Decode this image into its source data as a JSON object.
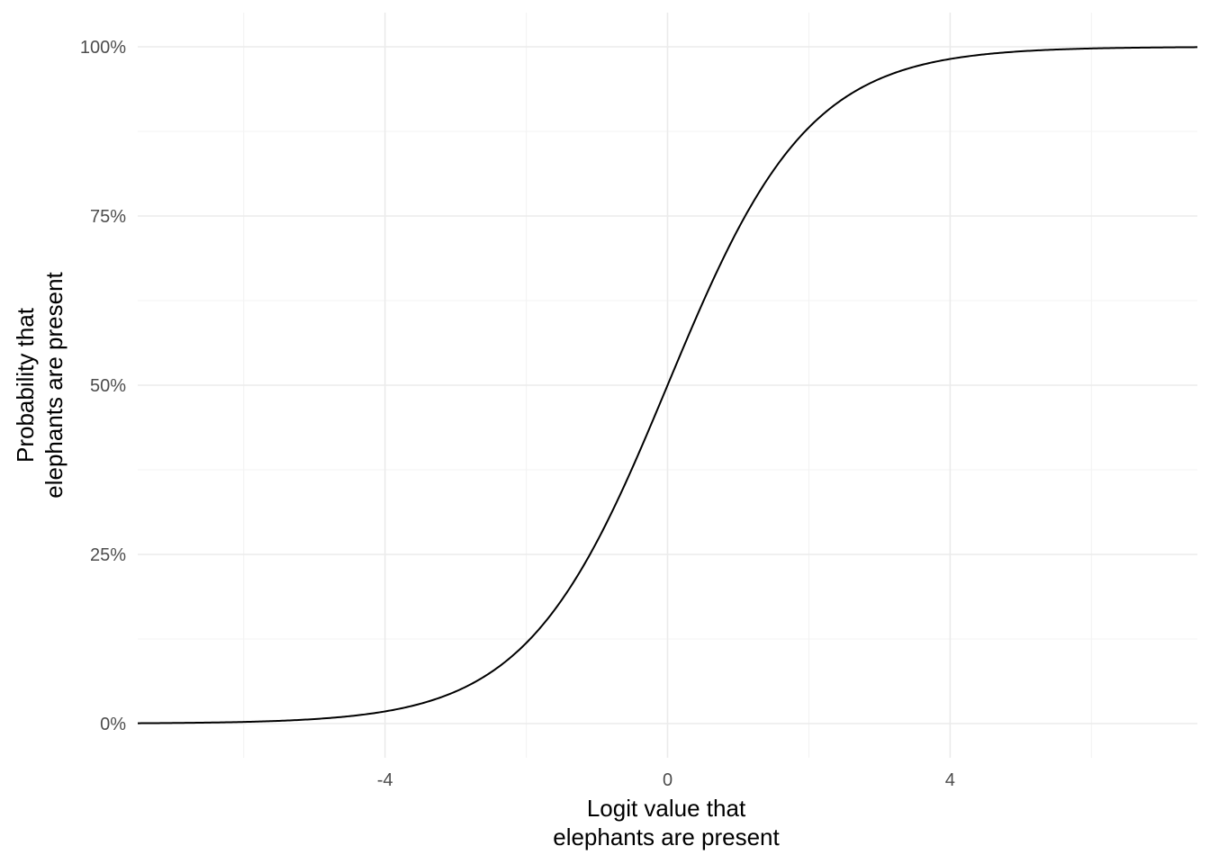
{
  "chart_data": {
    "type": "line",
    "function": "logistic",
    "xlabel": [
      "Logit value that",
      "elephants are present"
    ],
    "ylabel": [
      "Probability that",
      "elephants are present"
    ],
    "xlim": [
      -7.5,
      7.5
    ],
    "ylim": [
      0,
      1
    ],
    "x_ticks": [
      {
        "value": -4,
        "label": "-4"
      },
      {
        "value": 0,
        "label": "0"
      },
      {
        "value": 4,
        "label": "4"
      }
    ],
    "x_minor": [
      -6,
      -2,
      2,
      6
    ],
    "y_ticks": [
      {
        "value": 0,
        "label": "0%"
      },
      {
        "value": 0.25,
        "label": "25%"
      },
      {
        "value": 0.5,
        "label": "50%"
      },
      {
        "value": 0.75,
        "label": "75%"
      },
      {
        "value": 1,
        "label": "100%"
      }
    ],
    "y_minor": [
      0.125,
      0.375,
      0.625,
      0.875
    ],
    "series": [
      {
        "x": [
          -7.5,
          -7,
          -6.5,
          -6,
          -5.5,
          -5,
          -4.5,
          -4,
          -3.5,
          -3,
          -2.5,
          -2,
          -1.5,
          -1,
          -0.5,
          0,
          0.5,
          1,
          1.5,
          2,
          2.5,
          3,
          3.5,
          4,
          4.5,
          5,
          5.5,
          6,
          6.5,
          7,
          7.5
        ],
        "values": [
          0.001,
          0.001,
          0.002,
          0.002,
          0.004,
          0.007,
          0.011,
          0.018,
          0.029,
          0.047,
          0.076,
          0.119,
          0.182,
          0.269,
          0.378,
          0.5,
          0.622,
          0.731,
          0.818,
          0.881,
          0.924,
          0.953,
          0.971,
          0.982,
          0.989,
          0.993,
          0.996,
          0.998,
          0.998,
          0.999,
          0.999
        ]
      }
    ],
    "grid": true,
    "legend": "none",
    "line_color": "#000000"
  }
}
